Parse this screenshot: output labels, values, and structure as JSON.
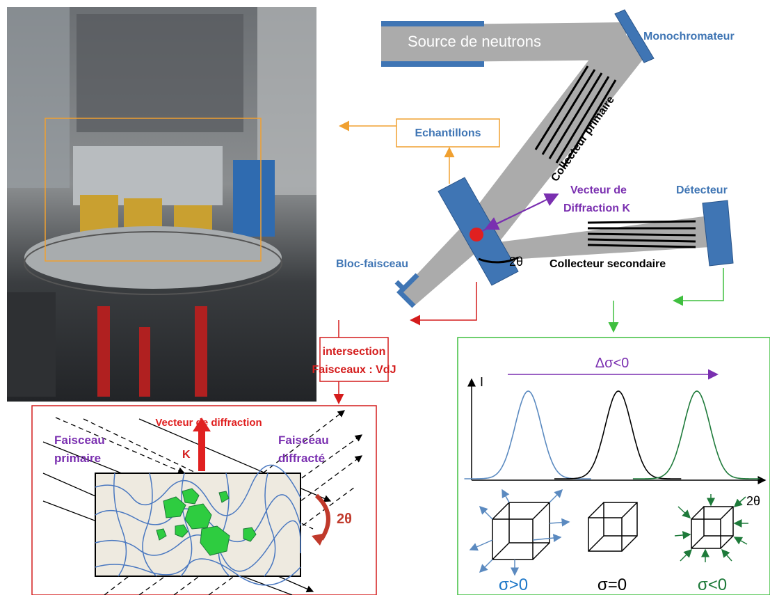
{
  "instrument": {
    "source": "Source de neutrons",
    "monochromator": "Monochromateur",
    "primary_collimator": "Collecteur primaire",
    "samples": "Echantillons",
    "diffraction_vector": [
      "Vecteur de",
      "Diffraction K"
    ],
    "detector": "Détecteur",
    "beam_stop": "Bloc-faisceau",
    "angle": "2θ",
    "secondary_collimator": "Collecteur secondaire",
    "intersection": [
      "intersection",
      "Faisceaux : VdJ"
    ]
  },
  "inset": {
    "vector_title": "Vecteur de diffraction",
    "k_label": "K",
    "primary_beam": [
      "Faisceau",
      "primaire"
    ],
    "diffracted_beam": [
      "Faisceau",
      "diffracté"
    ],
    "angle": "2θ"
  },
  "chart_data": {
    "type": "line",
    "title": "Δσ<0",
    "xlabel": "2θ",
    "ylabel": "I",
    "series": [
      {
        "peak_center": 0.19,
        "width": 0.045,
        "color": "#5b8ac0"
      },
      {
        "peak_center": 0.5,
        "width": 0.045,
        "color": "#000000"
      },
      {
        "peak_center": 0.77,
        "width": 0.045,
        "color": "#1e7a3a"
      }
    ]
  },
  "stress_states": [
    {
      "label": "σ>0",
      "color": "#1f78c8"
    },
    {
      "label": "σ=0",
      "color": "#000000"
    },
    {
      "label": "σ<0",
      "color": "#1e7a3a"
    }
  ],
  "colors": {
    "accent_blue": "#3f75b4",
    "box_orange": "#f0a030",
    "box_red": "#d41c1c",
    "box_green": "#3fbf3f",
    "purple": "#7a2fb0"
  }
}
